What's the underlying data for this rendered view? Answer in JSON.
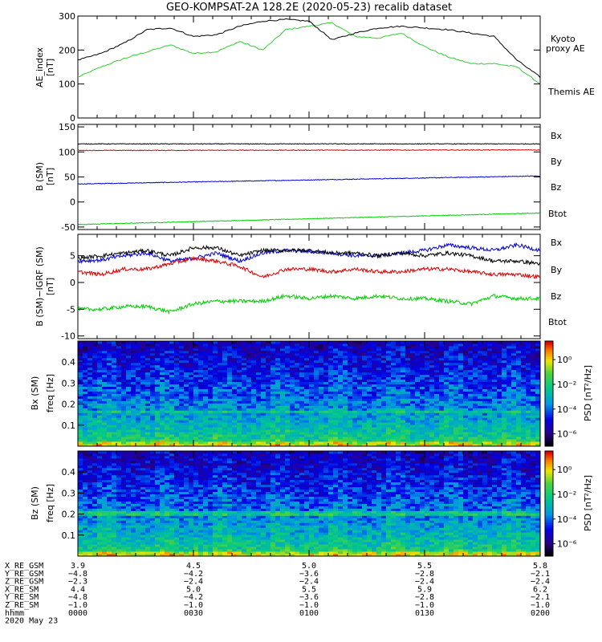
{
  "title": "GEO-KOMPSAT-2A 128.2E (2020-05-23) recalib dataset",
  "colors": {
    "black": "#000000",
    "red": "#dd0000",
    "green": "#00d000",
    "blue": "#0000dd",
    "lightgreen": "#33cc33"
  },
  "chart_data": [
    {
      "type": "line",
      "ylabel_lines": [
        "AE_index",
        "[nT]"
      ],
      "ylim": [
        0,
        300
      ],
      "yticks": [
        0,
        100,
        200,
        300
      ],
      "x": [
        0.0,
        0.05,
        0.1,
        0.15,
        0.2,
        0.25,
        0.3,
        0.35,
        0.4,
        0.45,
        0.5,
        0.55,
        0.6,
        0.65,
        0.7,
        0.75,
        0.8,
        0.85,
        0.9,
        0.95,
        1.0
      ],
      "series": [
        {
          "name": "Kyoto proxy AE",
          "color": "#33cc33",
          "values": [
            120,
            150,
            175,
            195,
            215,
            190,
            195,
            225,
            200,
            260,
            270,
            280,
            240,
            235,
            250,
            210,
            180,
            160,
            160,
            150,
            100
          ]
        },
        {
          "name": "Themis AE",
          "color": "#000000",
          "values": [
            170,
            190,
            220,
            260,
            265,
            240,
            245,
            270,
            285,
            290,
            285,
            230,
            250,
            265,
            270,
            265,
            260,
            250,
            240,
            170,
            120
          ]
        }
      ],
      "legend": [
        "Kyoto proxy AE",
        "Themis AE"
      ]
    },
    {
      "type": "line",
      "ylabel_lines": [
        "B (SM)",
        "[nT]"
      ],
      "ylim": [
        -55,
        155
      ],
      "yticks": [
        -50,
        0,
        50,
        100,
        150
      ],
      "x": [
        0.0,
        1.0
      ],
      "series": [
        {
          "name": "Bx",
          "color": "#0000dd",
          "values": [
            36,
            52
          ]
        },
        {
          "name": "By",
          "color": "#00d000",
          "values": [
            -45,
            -22
          ]
        },
        {
          "name": "Bz",
          "color": "#dd0000",
          "values": [
            103,
            104
          ]
        },
        {
          "name": "Btot",
          "color": "#000000",
          "values": [
            116,
            116
          ]
        }
      ],
      "legend": [
        "Bx",
        "By",
        "Bz",
        "Btot"
      ]
    },
    {
      "type": "line",
      "ylabel_lines": [
        "B (SM)−IGRF (SM)",
        "[nT]"
      ],
      "ylim": [
        -10.5,
        9
      ],
      "yticks": [
        -10,
        -5,
        0,
        5
      ],
      "x": [
        0.0,
        0.05,
        0.1,
        0.15,
        0.2,
        0.25,
        0.3,
        0.35,
        0.4,
        0.45,
        0.5,
        0.55,
        0.6,
        0.65,
        0.7,
        0.75,
        0.8,
        0.85,
        0.9,
        0.95,
        1.0
      ],
      "series": [
        {
          "name": "Bx",
          "color": "#0000dd",
          "values": [
            4.0,
            4.2,
            5.0,
            5.5,
            4.0,
            4.5,
            5.5,
            4.0,
            5.5,
            6.0,
            5.8,
            5.5,
            5.0,
            5.0,
            5.5,
            6.0,
            7.0,
            6.5,
            6.0,
            7.0,
            6.0
          ]
        },
        {
          "name": "By",
          "color": "#00d000",
          "values": [
            -5.0,
            -5.0,
            -4.5,
            -4.5,
            -5.5,
            -4.0,
            -3.5,
            -3.5,
            -3.5,
            -2.5,
            -3.0,
            -2.5,
            -3.0,
            -2.5,
            -3.0,
            -3.0,
            -3.5,
            -4.0,
            -2.5,
            -3.0,
            -3.0
          ]
        },
        {
          "name": "Bz",
          "color": "#dd0000",
          "values": [
            2.0,
            1.5,
            2.5,
            2.5,
            3.5,
            4.5,
            4.0,
            3.0,
            1.0,
            2.5,
            2.5,
            2.0,
            2.5,
            2.0,
            2.0,
            2.5,
            2.5,
            2.0,
            1.5,
            1.5,
            1.0
          ]
        },
        {
          "name": "Btot",
          "color": "#000000",
          "values": [
            4.5,
            5.0,
            5.5,
            6.0,
            5.0,
            6.5,
            6.5,
            5.0,
            6.0,
            6.0,
            6.0,
            5.5,
            5.5,
            5.0,
            5.5,
            5.0,
            5.5,
            5.0,
            4.0,
            4.0,
            3.5
          ]
        }
      ],
      "legend": [
        "Bx",
        "By",
        "Bz",
        "Btot"
      ]
    },
    {
      "type": "heatmap",
      "ylabel_lines": [
        "Bx (SM)",
        "freq [Hz]"
      ],
      "ylim": [
        0,
        0.5
      ],
      "yticks": [
        0.1,
        0.2,
        0.3,
        0.4
      ],
      "colorbar": {
        "label": "PSD [nT²/Hz]",
        "ticks": [
          "10⁰",
          "10⁻²",
          "10⁻⁴",
          "10⁻⁶"
        ],
        "tick_log": [
          0,
          -2,
          -4,
          -6
        ],
        "range_log": [
          -7,
          1.5
        ]
      }
    },
    {
      "type": "heatmap",
      "ylabel_lines": [
        "Bz (SM)",
        "freq [Hz]"
      ],
      "ylim": [
        0,
        0.5
      ],
      "yticks": [
        0.1,
        0.2,
        0.3,
        0.4
      ],
      "colorbar": {
        "label": "PSD [nT²/Hz]",
        "ticks": [
          "10⁰",
          "10⁻²",
          "10⁻⁴",
          "10⁻⁶"
        ],
        "tick_log": [
          0,
          -2,
          -4,
          -6
        ],
        "range_log": [
          -7,
          1.5
        ]
      }
    }
  ],
  "ephemeris": {
    "row_labels": [
      "X_RE_GSM",
      "Y_RE_GSM",
      "Z_RE_GSM",
      "X_RE_SM",
      "Y_RE_SM",
      "Z_RE_SM",
      "hhmm",
      "2020 May 23"
    ],
    "columns": [
      [
        "3.9",
        "−4.8",
        "−2.3",
        "4.4",
        "−4.8",
        "−1.0",
        "0000"
      ],
      [
        "4.5",
        "−4.2",
        "−2.4",
        "5.0",
        "−4.2",
        "−1.0",
        "0030"
      ],
      [
        "5.0",
        "−3.6",
        "−2.4",
        "5.5",
        "−3.6",
        "−1.0",
        "0100"
      ],
      [
        "5.5",
        "−2.8",
        "−2.4",
        "5.9",
        "−2.8",
        "−1.0",
        "0130"
      ],
      [
        "5.8",
        "−2.1",
        "−2.4",
        "6.2",
        "−2.1",
        "−1.0",
        "0200"
      ]
    ]
  }
}
